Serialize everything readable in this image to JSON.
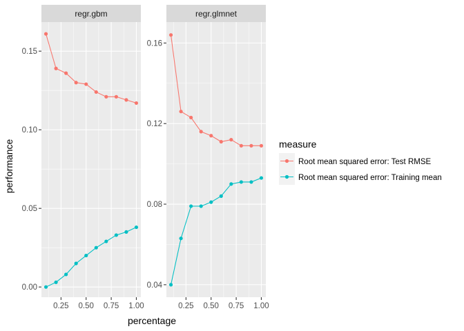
{
  "chart_data": {
    "type": "line",
    "xlabel": "percentage",
    "ylabel": "performance",
    "legend": {
      "title": "measure",
      "placement": "right",
      "entries": [
        {
          "name": "Root mean squared error: Test RMSE",
          "color": "#F8766D"
        },
        {
          "name": "Root mean squared error: Training mean",
          "color": "#00BFC4"
        }
      ]
    },
    "grid": true,
    "facets": [
      {
        "title": "regr.gbm",
        "x": [
          0.1,
          0.2,
          0.3,
          0.4,
          0.5,
          0.6,
          0.7,
          0.8,
          0.9,
          1.0
        ],
        "xlim": [
          0.055,
          1.045
        ],
        "xticks": [
          0.25,
          0.5,
          0.75,
          1.0
        ],
        "xtick_labels": [
          "0.25",
          "0.50",
          "0.75",
          "1.00"
        ],
        "ylim": [
          -0.0065,
          0.1685
        ],
        "yticks": [
          0.0,
          0.05,
          0.1,
          0.15
        ],
        "ytick_labels": [
          "0.00",
          "0.05",
          "0.10",
          "0.15"
        ],
        "series": [
          {
            "name": "Root mean squared error: Test RMSE",
            "values": [
              0.161,
              0.139,
              0.136,
              0.13,
              0.129,
              0.124,
              0.121,
              0.121,
              0.119,
              0.117
            ]
          },
          {
            "name": "Root mean squared error: Training mean",
            "values": [
              0.0,
              0.003,
              0.008,
              0.015,
              0.02,
              0.025,
              0.029,
              0.033,
              0.035,
              0.038
            ]
          }
        ]
      },
      {
        "title": "regr.glmnet",
        "x": [
          0.1,
          0.2,
          0.3,
          0.4,
          0.5,
          0.6,
          0.7,
          0.8,
          0.9,
          1.0
        ],
        "xlim": [
          0.055,
          1.045
        ],
        "xticks": [
          0.25,
          0.5,
          0.75,
          1.0
        ],
        "xtick_labels": [
          "0.25",
          "0.50",
          "0.75",
          "1.00"
        ],
        "ylim": [
          0.0338,
          0.1704
        ],
        "yticks": [
          0.04,
          0.08,
          0.12,
          0.16
        ],
        "ytick_labels": [
          "0.04",
          "0.08",
          "0.12",
          "0.16"
        ],
        "series": [
          {
            "name": "Root mean squared error: Test RMSE",
            "values": [
              0.164,
              0.126,
              0.123,
              0.116,
              0.114,
              0.111,
              0.112,
              0.109,
              0.109,
              0.109
            ]
          },
          {
            "name": "Root mean squared error: Training mean",
            "values": [
              0.04,
              0.063,
              0.079,
              0.079,
              0.081,
              0.084,
              0.09,
              0.091,
              0.091,
              0.093
            ]
          }
        ]
      }
    ]
  }
}
